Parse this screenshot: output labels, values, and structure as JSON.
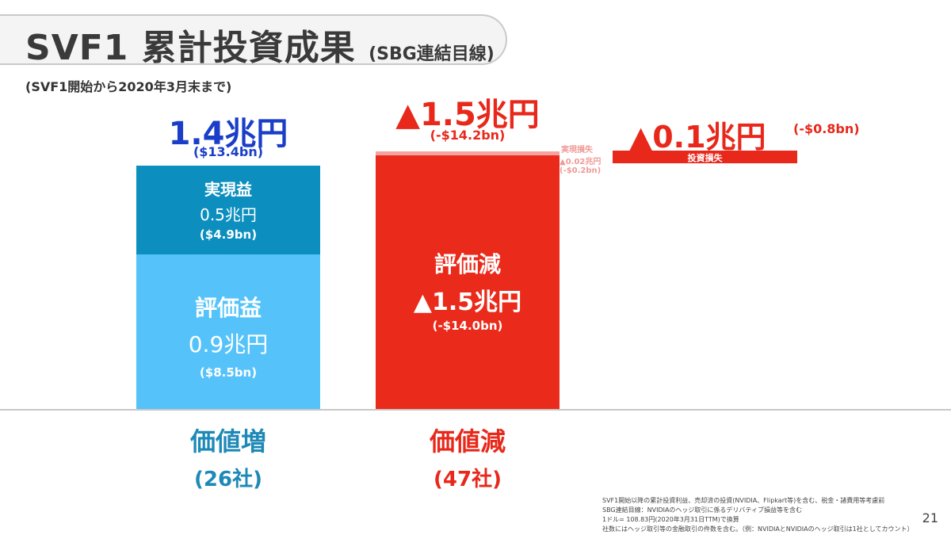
{
  "title": {
    "main": "SVF1 累計投資成果",
    "sub": "(SBG連結目線)"
  },
  "subtitle": "(SVF1開始から2020年3月末まで)",
  "colors": {
    "realized_gain": "#0c8fbf",
    "unrealized_gain": "#55c3fa",
    "decrease": "#ea2b1b",
    "realized_loss": "#f5a3a0",
    "blue_text": "#1a3ec8",
    "teal_text": "#1e89b7",
    "red_text": "#e8281b"
  },
  "chart_data": {
    "type": "bar",
    "unit": "兆円",
    "bars": [
      {
        "name": "価値増",
        "total_label": "1.4兆円",
        "total_usd": "($13.4bn)",
        "category_label": "価値増",
        "count_label": "(26社)",
        "segments": [
          {
            "name": "評価益",
            "value_label": "0.9兆円",
            "usd": "($8.5bn)",
            "value": 0.9
          },
          {
            "name": "実現益",
            "value_label": "0.5兆円",
            "usd": "($4.9bn)",
            "value": 0.5
          }
        ]
      },
      {
        "name": "価値減",
        "total_label": "▲1.5兆円",
        "total_usd": "(-$14.2bn)",
        "category_label": "価値減",
        "count_label": "(47社)",
        "segments": [
          {
            "name": "評価減",
            "value_label": "▲1.5兆円",
            "usd": "(-$14.0bn)",
            "value": -1.5
          },
          {
            "name": "実現損失",
            "value_label": "▲0.02兆円",
            "usd": "(-$0.2bn)",
            "value": -0.02
          }
        ]
      },
      {
        "name": "投資損失",
        "total_label": "▲0.1兆円",
        "total_usd": "(-$0.8bn)",
        "segment_label": "投資損失",
        "value": -0.1
      }
    ]
  },
  "footnotes": [
    "SVF1開始以降の累計投資利益、売却済の投資(NVIDIA、Flipkart等)を含む、税金・諸費用等考慮前",
    "SBG連結目線：NVIDIAのヘッジ取引に係るデリバティブ損益等を含む",
    "1ドル= 108.83円(2020年3月31日TTM)で換算",
    "社数にはヘッジ取引等の金融取引の件数を含む。（例：NVIDIAとNVIDIAのヘッジ取引は1社としてカウント）"
  ],
  "page_number": "21"
}
